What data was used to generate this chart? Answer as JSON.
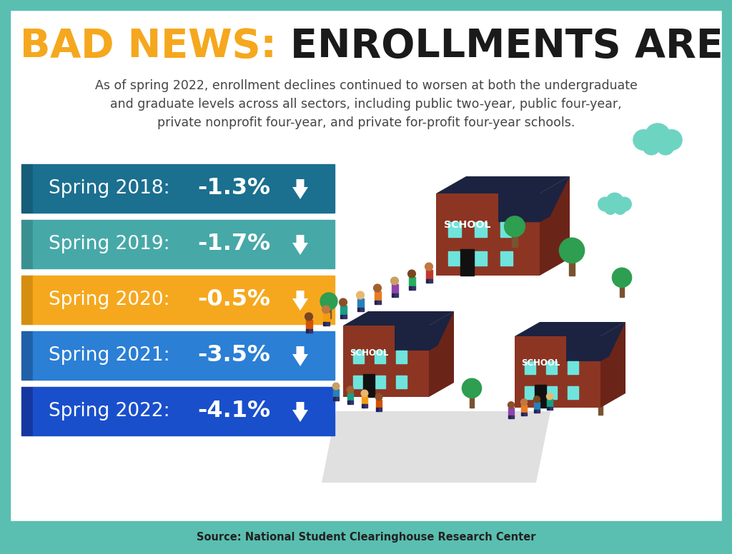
{
  "title_bad_news": "BAD NEWS: ",
  "title_main": "ENROLLMENTS ARE DOWN",
  "subtitle_line1": "As of spring 2022, enrollment declines continued to worsen at both the undergraduate",
  "subtitle_line2": "and graduate levels across all sectors, including public two-year, public four-year,",
  "subtitle_line3": "private nonprofit four-year, and private for-profit four-year schools.",
  "source": "Source: National Student Clearinghouse Research Center",
  "bg_color": "#ffffff",
  "border_color": "#5abfb0",
  "title_orange": "#F5A81E",
  "title_black": "#1a1a1a",
  "subtitle_color": "#444444",
  "bars": [
    {
      "label": "Spring 2018:",
      "value": "-1.3%",
      "color": "#1b6f8f",
      "side_color": "#155d78"
    },
    {
      "label": "Spring 2019:",
      "value": "-1.7%",
      "color": "#47a8a8",
      "side_color": "#3a9090"
    },
    {
      "label": "Spring 2020:",
      "value": "-0.5%",
      "color": "#F5A81E",
      "side_color": "#d48f10"
    },
    {
      "label": "Spring 2021:",
      "value": "-3.5%",
      "color": "#2b7fd4",
      "side_color": "#1f60a8"
    },
    {
      "label": "Spring 2022:",
      "value": "-4.1%",
      "color": "#1a4fcc",
      "side_color": "#1438a0"
    }
  ],
  "footer_color": "#5abfb0",
  "footer_text_color": "#222222"
}
